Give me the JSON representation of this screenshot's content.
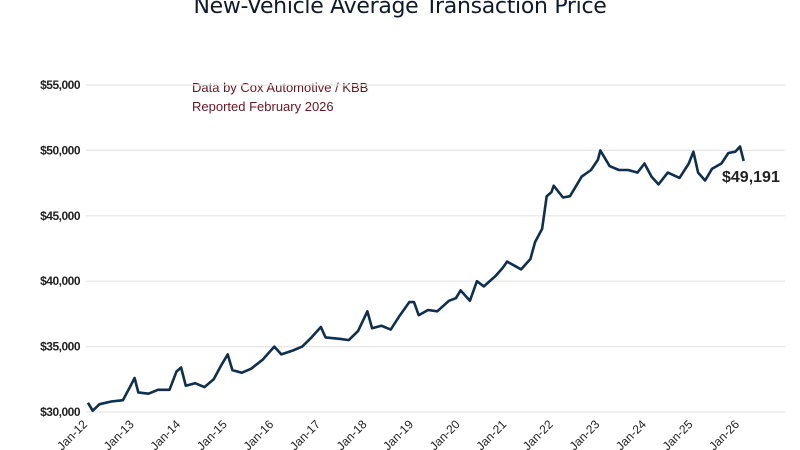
{
  "chart_data": {
    "type": "line",
    "title": "New-Vehicle Average Transaction Price",
    "annotations": [
      "Data by Cox Automotive / KBB",
      "Reported February 2026"
    ],
    "end_label": "$49,191",
    "xlabel": "",
    "ylabel": "",
    "ylim": [
      30000,
      55000
    ],
    "xlim": [
      2012,
      2026
    ],
    "yticks": [
      30000,
      35000,
      40000,
      45000,
      50000,
      55000
    ],
    "ytick_labels": [
      "$30,000",
      "$35,000",
      "$40,000",
      "$45,000",
      "$50,000",
      "$55,000"
    ],
    "xtick_labels": [
      "Jan-12",
      "Jan-13",
      "Jan-14",
      "Jan-15",
      "Jan-16",
      "Jan-17",
      "Jan-18",
      "Jan-19",
      "Jan-20",
      "Jan-21",
      "Jan-22",
      "Jan-23",
      "Jan-24",
      "Jan-25",
      "Jan-26"
    ],
    "grid": true,
    "line_color": "#0f2f4f",
    "series": [
      {
        "x": [
          2012.0,
          2012.1,
          2012.25,
          2012.5,
          2012.75,
          2012.9,
          2013.0,
          2013.08,
          2013.3,
          2013.5,
          2013.75,
          2013.9,
          2014.0,
          2014.1,
          2014.3,
          2014.5,
          2014.7,
          2014.85,
          2015.0,
          2015.1,
          2015.3,
          2015.5,
          2015.75,
          2016.0,
          2016.15,
          2016.4,
          2016.6,
          2016.8,
          2017.0,
          2017.1,
          2017.4,
          2017.6,
          2017.8,
          2018.0,
          2018.1,
          2018.3,
          2018.5,
          2018.7,
          2018.9,
          2019.0,
          2019.1,
          2019.3,
          2019.5,
          2019.75,
          2019.9,
          2020.0,
          2020.2,
          2020.35,
          2020.5,
          2020.75,
          2020.9,
          2021.0,
          2021.2,
          2021.3,
          2021.5,
          2021.6,
          2021.75,
          2021.85,
          2021.95,
          2022.0,
          2022.2,
          2022.35,
          2022.6,
          2022.8,
          2022.95,
          2023.0,
          2023.2,
          2023.4,
          2023.6,
          2023.8,
          2023.95,
          2024.1,
          2024.25,
          2024.45,
          2024.7,
          2024.9,
          2025.0,
          2025.1,
          2025.25,
          2025.4,
          2025.6,
          2025.75,
          2025.9,
          2026.0,
          2026.08
        ],
        "y": [
          30700,
          30100,
          30600,
          30800,
          30900,
          31900,
          32600,
          31500,
          31400,
          31700,
          31700,
          33100,
          33400,
          32000,
          32200,
          31900,
          32500,
          33500,
          34400,
          33200,
          33000,
          33300,
          34000,
          35000,
          34400,
          34700,
          35000,
          35700,
          36500,
          35700,
          35600,
          35500,
          36200,
          37700,
          36400,
          36600,
          36300,
          37400,
          38400,
          38400,
          37400,
          37800,
          37700,
          38500,
          38700,
          39300,
          38500,
          40000,
          39600,
          40400,
          41000,
          41500,
          41100,
          40900,
          41700,
          43000,
          44000,
          46500,
          46800,
          47300,
          46400,
          46500,
          48000,
          48500,
          49300,
          50000,
          48800,
          48500,
          48500,
          48300,
          49000,
          48000,
          47400,
          48300,
          47900,
          49000,
          49900,
          48300,
          47700,
          48600,
          49000,
          49800,
          49900,
          50300,
          49191
        ]
      }
    ]
  }
}
